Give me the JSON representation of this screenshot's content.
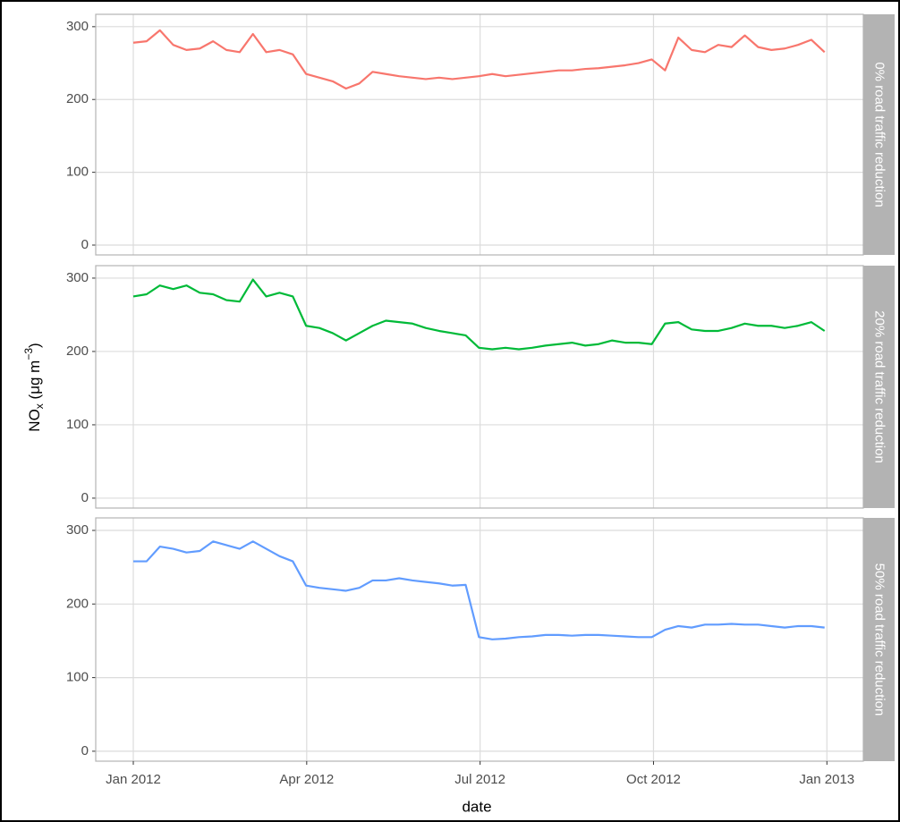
{
  "chart_data": {
    "type": "line",
    "facet": true,
    "x_label": "date",
    "y_label": [
      "NO",
      "x",
      " (μg m",
      "−3",
      ")"
    ],
    "x": [
      0,
      0.23,
      0.46,
      0.69,
      0.92,
      1.15,
      1.38,
      1.61,
      1.84,
      2.07,
      2.3,
      2.53,
      2.76,
      2.99,
      3.22,
      3.45,
      3.68,
      3.91,
      4.14,
      4.37,
      4.6,
      4.83,
      5.06,
      5.29,
      5.52,
      5.75,
      5.98,
      6.21,
      6.44,
      6.67,
      6.9,
      7.13,
      7.36,
      7.59,
      7.82,
      8.05,
      8.28,
      8.51,
      8.74,
      8.97,
      9.2,
      9.43,
      9.66,
      9.89,
      10.12,
      10.35,
      10.58,
      10.81,
      11.04,
      11.27,
      11.5,
      11.73,
      11.96
    ],
    "xlim": [
      -0.65,
      12.63
    ],
    "xticks": [
      {
        "value": 0,
        "label": "Jan 2012"
      },
      {
        "value": 3,
        "label": "Apr 2012"
      },
      {
        "value": 6,
        "label": "Jul 2012"
      },
      {
        "value": 9,
        "label": "Oct 2012"
      },
      {
        "value": 12,
        "label": "Jan 2013"
      }
    ],
    "ylim": [
      -13.5,
      317
    ],
    "yticks": [
      0,
      100,
      200,
      300
    ],
    "grid": true,
    "series": [
      {
        "name": "0% road traffic reduction",
        "color": "#f8766d",
        "values": [
          278,
          280,
          295,
          275,
          268,
          270,
          280,
          268,
          265,
          290,
          265,
          268,
          262,
          235,
          230,
          225,
          215,
          222,
          238,
          235,
          232,
          230,
          228,
          230,
          228,
          230,
          232,
          235,
          232,
          234,
          236,
          238,
          240,
          240,
          242,
          243,
          245,
          247,
          250,
          255,
          240,
          285,
          268,
          265,
          275,
          272,
          288,
          272,
          268,
          270,
          275,
          282,
          265
        ]
      },
      {
        "name": "20% road traffic reduction",
        "color": "#00ba38",
        "values": [
          275,
          278,
          290,
          285,
          290,
          280,
          278,
          270,
          268,
          298,
          275,
          280,
          275,
          235,
          232,
          225,
          215,
          225,
          235,
          242,
          240,
          238,
          232,
          228,
          225,
          222,
          205,
          203,
          205,
          203,
          205,
          208,
          210,
          212,
          208,
          210,
          215,
          212,
          212,
          210,
          238,
          240,
          230,
          228,
          228,
          232,
          238,
          235,
          235,
          232,
          235,
          240,
          228
        ]
      },
      {
        "name": "50% road traffic reduction",
        "color": "#619cff",
        "values": [
          258,
          258,
          278,
          275,
          270,
          272,
          285,
          280,
          275,
          285,
          275,
          265,
          258,
          225,
          222,
          220,
          218,
          222,
          232,
          232,
          235,
          232,
          230,
          228,
          225,
          226,
          155,
          152,
          153,
          155,
          156,
          158,
          158,
          157,
          158,
          158,
          157,
          156,
          155,
          155,
          165,
          170,
          168,
          172,
          172,
          173,
          172,
          172,
          170,
          168,
          170,
          170,
          168
        ]
      }
    ]
  }
}
